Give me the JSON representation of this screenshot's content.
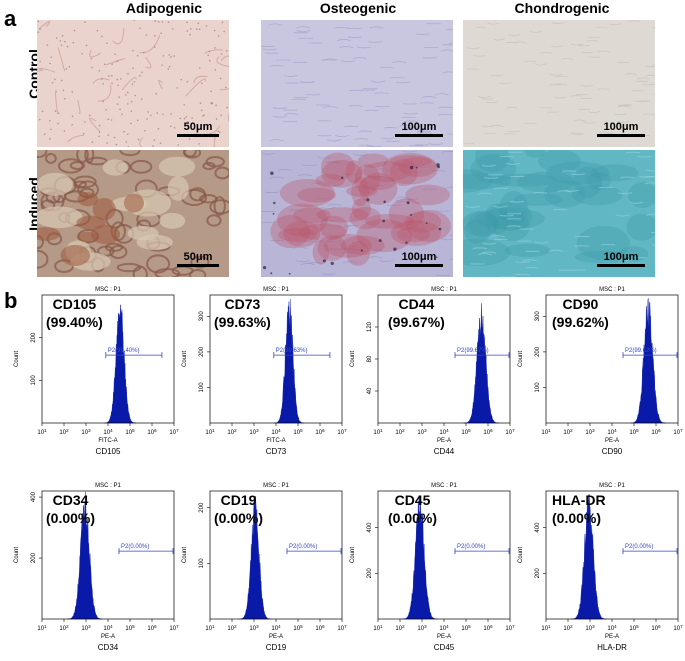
{
  "panel_a": {
    "letter": "a",
    "columns": [
      "Adipogenic",
      "Osteogenic",
      "Chondrogenic"
    ],
    "rows": [
      "Control",
      "Induced"
    ],
    "images": [
      {
        "row": 0,
        "col": 0,
        "scale": "50μm",
        "base": "#e9d3cc",
        "accent": "#c99a8f",
        "pattern": "adipo-control"
      },
      {
        "row": 0,
        "col": 1,
        "scale": "100μm",
        "base": "#c9c6df",
        "accent": "#a8a3cc",
        "pattern": "osteo-control"
      },
      {
        "row": 0,
        "col": 2,
        "scale": "100μm",
        "base": "#dedad3",
        "accent": "#c7c1b8",
        "pattern": "chondro-control"
      },
      {
        "row": 1,
        "col": 0,
        "scale": "50μm",
        "base": "#b59a88",
        "accent": "#8a5a4a",
        "pattern": "adipo-induced"
      },
      {
        "row": 1,
        "col": 1,
        "scale": "100μm",
        "base": "#b9b5d6",
        "accent": "#b9576a",
        "pattern": "osteo-induced"
      },
      {
        "row": 1,
        "col": 2,
        "scale": "100μm",
        "base": "#62b7c4",
        "accent": "#3e9aa9",
        "pattern": "chondro-induced"
      }
    ]
  },
  "panel_b": {
    "letter": "b",
    "gate_title": "MSC : P1",
    "y_axis_label": "Count",
    "x_tick_exponents": [
      "2",
      "3",
      "4",
      "5",
      "6",
      "7"
    ],
    "x_tick_base": "10",
    "x_tick_exp_first": "1",
    "hist_color": "#0a1aa8",
    "gate_color": "#3344cc"
  },
  "chart_data": [
    {
      "type": "histogram",
      "marker": "CD105",
      "percent": "(99.40%)",
      "gate": "P2(99.40%)",
      "channel": "FITC-A",
      "xlabel": "CD105",
      "yticks": [
        "100",
        "200"
      ],
      "ymax": 300,
      "xlim_log": [
        1,
        7
      ],
      "peak_log": 4.55,
      "peak_count": 280,
      "spread": 0.18,
      "gate_range_log": [
        3.9,
        6.45
      ]
    },
    {
      "type": "histogram",
      "marker": "CD73",
      "percent": "(99.63%)",
      "gate": "P2(99.63%)",
      "channel": "FITC-A",
      "xlabel": "CD73",
      "yticks": [
        "100",
        "200",
        "300"
      ],
      "ymax": 360,
      "xlim_log": [
        1,
        7
      ],
      "peak_log": 4.6,
      "peak_count": 330,
      "spread": 0.17,
      "gate_range_log": [
        3.9,
        6.45
      ]
    },
    {
      "type": "histogram",
      "marker": "CD44",
      "percent": "(99.67%)",
      "gate": "P2(99.67%)",
      "channel": "PE-A",
      "xlabel": "CD44",
      "yticks": [
        "40",
        "80",
        "120"
      ],
      "ymax": 160,
      "xlim_log": [
        1,
        7
      ],
      "peak_log": 5.7,
      "peak_count": 135,
      "spread": 0.2,
      "gate_range_log": [
        4.5,
        7.0
      ]
    },
    {
      "type": "histogram",
      "marker": "CD90",
      "percent": "(99.62%)",
      "gate": "P2(99.62%)",
      "channel": "PE-A",
      "xlabel": "CD90",
      "yticks": [
        "100",
        "200",
        "300"
      ],
      "ymax": 360,
      "xlim_log": [
        1,
        7
      ],
      "peak_log": 5.65,
      "peak_count": 330,
      "spread": 0.2,
      "gate_range_log": [
        4.5,
        7.0
      ]
    },
    {
      "type": "histogram",
      "marker": "CD34",
      "percent": "(0.00%)",
      "gate": "P2(0.00%)",
      "channel": "PE-A",
      "xlabel": "CD34",
      "yticks": [
        "200",
        "400"
      ],
      "ymax": 420,
      "xlim_log": [
        1,
        7
      ],
      "peak_log": 2.95,
      "peak_count": 380,
      "spread": 0.2,
      "gate_range_log": [
        4.5,
        7.0
      ]
    },
    {
      "type": "histogram",
      "marker": "CD19",
      "percent": "(0.00%)",
      "gate": "P2(0.00%)",
      "channel": "PE-A",
      "xlabel": "CD19",
      "yticks": [
        "100",
        "200"
      ],
      "ymax": 230,
      "xlim_log": [
        1,
        7
      ],
      "peak_log": 3.05,
      "peak_count": 200,
      "spread": 0.18,
      "gate_range_log": [
        4.5,
        7.0
      ]
    },
    {
      "type": "histogram",
      "marker": "CD45",
      "percent": "(0.00%)",
      "gate": "P2(0.00%)",
      "channel": "PE-A",
      "xlabel": "CD45",
      "yticks": [
        "200",
        "400"
      ],
      "ymax": 560,
      "xlim_log": [
        1,
        7
      ],
      "peak_log": 2.9,
      "peak_count": 500,
      "spread": 0.2,
      "gate_range_log": [
        4.5,
        7.0
      ]
    },
    {
      "type": "histogram",
      "marker": "HLA-DR",
      "percent": "(0.00%)",
      "gate": "P2(0.00%)",
      "channel": "PE-A",
      "xlabel": "HLA-DR",
      "yticks": [
        "200",
        "400"
      ],
      "ymax": 560,
      "xlim_log": [
        1,
        7
      ],
      "peak_log": 2.95,
      "peak_count": 500,
      "spread": 0.2,
      "gate_range_log": [
        4.5,
        7.0
      ]
    }
  ]
}
